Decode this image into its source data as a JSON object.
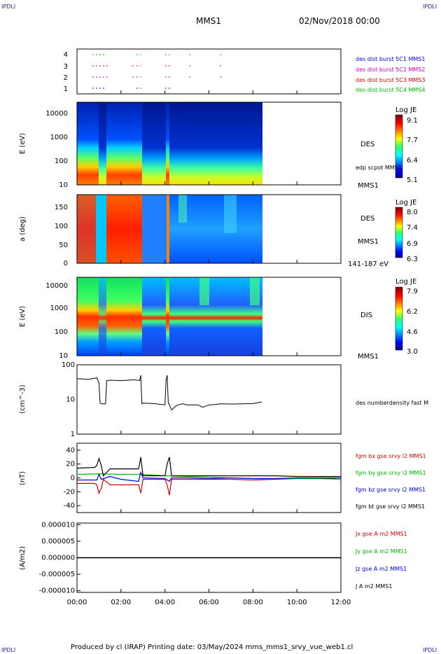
{
  "corners": {
    "tl": "IPDLI",
    "tr": "IPDLI",
    "bl": "IPDLI",
    "br": "IPDLI"
  },
  "header": {
    "mission": "MMS1",
    "datetime": "02/Nov/2018 00:00"
  },
  "footer": {
    "text": "Produced by cl (IRAP)   Printing date: 03/May/2024   mms_mms1_srvy_vue_web1.cl"
  },
  "colors": {
    "red": "#dd0000",
    "green": "#00bb00",
    "blue": "#0000dd",
    "magenta": "#cc00cc",
    "black": "#000000"
  },
  "chart_data": [
    {
      "type": "scatter",
      "id": "burst",
      "ylim": [
        0.5,
        4.5
      ],
      "yticks": [
        "1",
        "2",
        "3",
        "4"
      ],
      "series": [
        {
          "name": "des dist burst 5C1 MMS1",
          "level": 1,
          "color": "#0000dd",
          "segments": [
            [
              0.7,
              1.3
            ],
            [
              2.7,
              2.9
            ],
            [
              4.0,
              4.3
            ]
          ]
        },
        {
          "name": "des dist burst 5C2 MMS2",
          "level": 2,
          "color": "#cc00cc",
          "segments": [
            [
              0.7,
              1.5
            ],
            [
              2.5,
              2.6
            ],
            [
              2.7,
              2.9
            ],
            [
              4.0,
              4.3
            ],
            [
              5.1,
              5.2
            ],
            [
              6.5,
              6.6
            ]
          ]
        },
        {
          "name": "des dist burst 5C3 MMS3",
          "level": 3,
          "color": "#dd0000",
          "segments": [
            [
              0.7,
              1.5
            ],
            [
              2.5,
              2.6
            ],
            [
              2.7,
              2.9
            ],
            [
              4.0,
              4.3
            ],
            [
              5.1,
              5.2
            ],
            [
              6.5,
              6.6
            ]
          ]
        },
        {
          "name": "des dist burst 5C4 MMS4",
          "level": 4,
          "color": "#00bb00",
          "segments": [
            [
              0.7,
              1.3
            ],
            [
              2.7,
              2.9
            ],
            [
              4.0,
              4.3
            ],
            [
              5.1,
              5.2
            ],
            [
              6.5,
              6.6
            ]
          ]
        }
      ]
    },
    {
      "type": "heatmap",
      "id": "des_energy",
      "ylabel": "E (eV)",
      "yticks": [
        "10",
        "100",
        "1000",
        "10000"
      ],
      "instrument": "DES",
      "overlay_label": "edp scpot MMS1",
      "spacecraft": "MMS1",
      "colorbar": {
        "title": "Log JE",
        "ticks": [
          "9.1",
          "7.7",
          "6.4",
          "5.1"
        ]
      },
      "data_end_hours": 8.45
    },
    {
      "type": "heatmap",
      "id": "des_pitch",
      "ylabel": "a (deg)",
      "yticks": [
        "0",
        "50",
        "100",
        "150"
      ],
      "instrument": "DES",
      "spacecraft": "MMS1",
      "energy_range": "141-187 eV",
      "colorbar": {
        "title": "Log JE",
        "ticks": [
          "8.0",
          "7.4",
          "6.9",
          "6.3"
        ]
      },
      "data_end_hours": 8.45
    },
    {
      "type": "heatmap",
      "id": "dis_energy",
      "ylabel": "E (eV)",
      "yticks": [
        "10",
        "100",
        "1000",
        "10000"
      ],
      "instrument": "DIS",
      "spacecraft": "MMS1",
      "colorbar": {
        "title": "Log JE",
        "ticks": [
          "7.9",
          "6.2",
          "4.6",
          "3.0"
        ]
      },
      "data_end_hours": 8.45
    },
    {
      "type": "line",
      "id": "density",
      "ylabel": "(cm^-3)",
      "scale": "log",
      "ylim": [
        1,
        100
      ],
      "yticks": [
        "1",
        "10",
        "100"
      ],
      "series": [
        {
          "name": "des numberdensity fast M",
          "color": "#000000",
          "x": [
            0,
            0.5,
            0.9,
            1.0,
            1.05,
            1.1,
            1.3,
            1.35,
            1.5,
            2.0,
            2.6,
            2.85,
            2.9,
            2.95,
            3.0,
            3.5,
            4.0,
            4.05,
            4.1,
            4.15,
            4.2,
            4.3,
            4.5,
            4.6,
            4.8,
            5.0,
            5.5,
            5.7,
            5.8,
            6.0,
            6.3,
            6.5,
            7.0,
            7.5,
            8.0,
            8.2,
            8.4
          ],
          "y": [
            40,
            38,
            42,
            30,
            8,
            7.5,
            7.5,
            35,
            36,
            35,
            37,
            35,
            50,
            7.5,
            7.8,
            7.6,
            7,
            35,
            50,
            8,
            7,
            5,
            6.5,
            7,
            7.5,
            7,
            7,
            6,
            6.2,
            7,
            7.2,
            7.5,
            7.4,
            7.5,
            7.6,
            8,
            8.5
          ]
        }
      ]
    },
    {
      "type": "line",
      "id": "field",
      "ylabel": "(nT)",
      "ylim": [
        -50,
        50
      ],
      "yticks": [
        "-40",
        "-20",
        "0",
        "20",
        "40"
      ],
      "series": [
        {
          "name": "fgm bx gse srvy l2 MMS1",
          "color": "#dd0000",
          "x": [
            0,
            0.8,
            0.9,
            1.0,
            1.1,
            1.2,
            1.5,
            2.0,
            2.8,
            2.9,
            3.0,
            3.5,
            4.0,
            4.1,
            4.2,
            4.3,
            4.6,
            5.0,
            6.0,
            7.0,
            8.0,
            9.0,
            10.0,
            11.0,
            12.0
          ],
          "y": [
            -8,
            -8,
            -10,
            -22,
            -15,
            -2,
            -10,
            -10,
            -10,
            -22,
            -2,
            -2,
            -2,
            -10,
            -25,
            -2,
            -2,
            -2,
            -2,
            -2,
            -3,
            -2,
            -1,
            -1,
            0
          ]
        },
        {
          "name": "fgm by gse srvy l2 MMS1",
          "color": "#00bb00",
          "x": [
            0,
            1,
            2,
            3,
            4,
            5,
            6,
            7,
            8,
            9,
            10,
            11,
            12
          ],
          "y": [
            5,
            6,
            5,
            5,
            3,
            2,
            1,
            0,
            -1,
            -1,
            -1,
            -1,
            -2
          ]
        },
        {
          "name": "fgm bz gse srvy l2 MMS1",
          "color": "#0000dd",
          "x": [
            0,
            0.9,
            1.0,
            1.1,
            1.5,
            2.0,
            2.8,
            2.9,
            3.0,
            4.0,
            4.2,
            4.3,
            5.0,
            6.0,
            7.0,
            8.0,
            9.0,
            10.0,
            11.0,
            12.0
          ],
          "y": [
            -3,
            -3,
            5,
            -2,
            2,
            -2,
            -5,
            8,
            0,
            -1,
            -5,
            0,
            0,
            -1,
            0,
            -1,
            -1,
            0,
            0,
            0
          ]
        },
        {
          "name": "fgm bt gse srvy l2 MMS1",
          "color": "#000000",
          "x": [
            0,
            0.8,
            0.9,
            1.0,
            1.1,
            1.2,
            1.5,
            2.0,
            2.8,
            2.9,
            3.0,
            3.5,
            4.0,
            4.1,
            4.2,
            4.3,
            4.6,
            5.0,
            6.0,
            7.0,
            8.0,
            9.0,
            10.0,
            11.0,
            12.0
          ],
          "y": [
            14,
            15,
            18,
            28,
            18,
            3,
            13,
            13,
            13,
            30,
            3,
            3,
            3,
            20,
            30,
            3,
            3,
            3,
            3,
            3,
            3,
            3,
            2,
            2,
            2
          ]
        }
      ]
    },
    {
      "type": "line",
      "id": "current",
      "ylabel": "(A/m2)",
      "ylim": [
        -1.05e-05,
        1.05e-05
      ],
      "yticks": [
        "-0.000010",
        "-0.000005",
        "0.000000",
        "0.000005",
        "0.000010"
      ],
      "series": [
        {
          "name": "Jx gse A m2 MMS1",
          "color": "#dd0000",
          "x": [
            0,
            12
          ],
          "y": [
            0,
            0
          ]
        },
        {
          "name": "Jy gse A m2 MMS1",
          "color": "#00bb00",
          "x": [
            0,
            12
          ],
          "y": [
            0,
            0
          ]
        },
        {
          "name": "Jz gse A m2 MMS1",
          "color": "#0000dd",
          "x": [
            0,
            12
          ],
          "y": [
            0,
            0
          ]
        },
        {
          "name": "J A m2 MMS1",
          "color": "#000000",
          "x": [
            0,
            12
          ],
          "y": [
            0,
            0
          ]
        }
      ]
    }
  ],
  "xaxis": {
    "ticks": [
      "00:00",
      "02:00",
      "04:00",
      "06:00",
      "08:00",
      "10:00",
      "12:00"
    ],
    "range_hours": [
      0,
      12
    ]
  }
}
